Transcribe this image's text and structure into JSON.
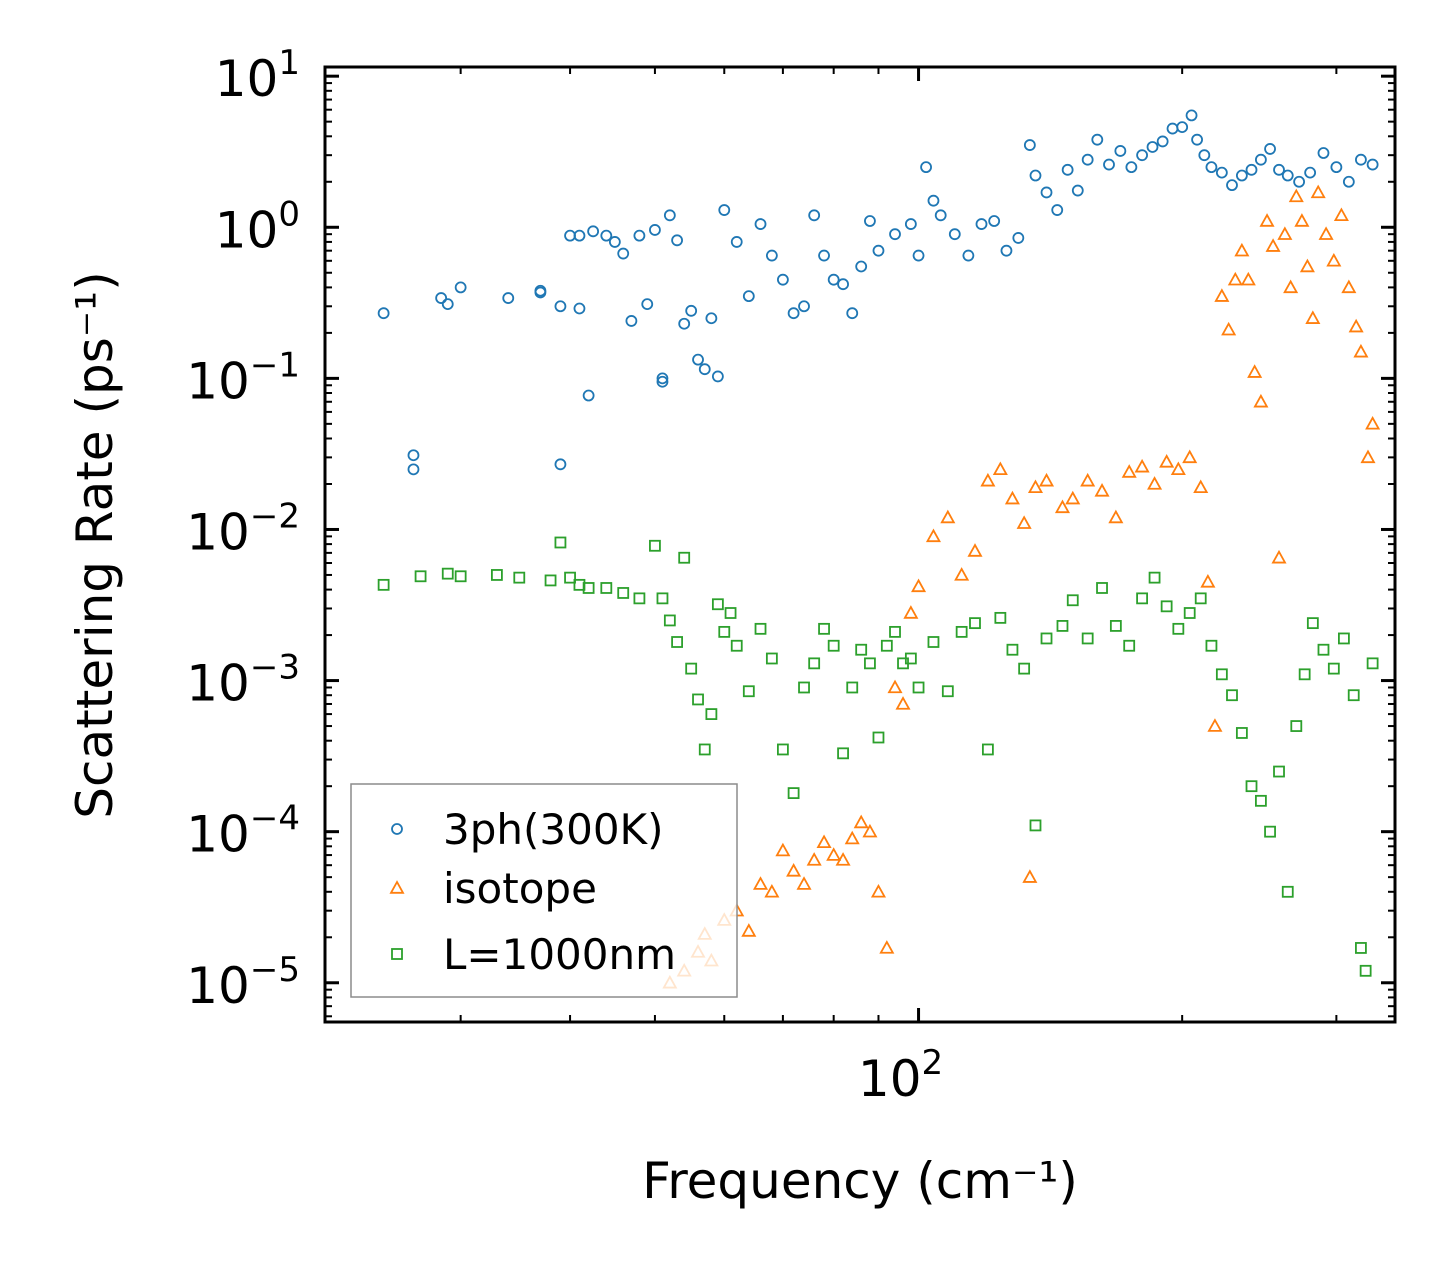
{
  "chart_data": {
    "type": "scatter",
    "title": "",
    "xlabel": "Frequency (cm⁻¹)",
    "ylabel": "Scattering Rate (ps⁻¹)",
    "xscale": "log",
    "yscale": "log",
    "xlim": [
      21,
      350
    ],
    "ylim": [
      5.5e-06,
      11.5
    ],
    "x_ticks": [
      {
        "base": "10",
        "exp": "2",
        "value": 100
      }
    ],
    "y_ticks": [
      {
        "base": "10",
        "exp": "1",
        "value": 10
      },
      {
        "base": "10",
        "exp": "0",
        "value": 1
      },
      {
        "base": "10",
        "exp": "−1",
        "value": 0.1
      },
      {
        "base": "10",
        "exp": "−2",
        "value": 0.01
      },
      {
        "base": "10",
        "exp": "−3",
        "value": 0.001
      },
      {
        "base": "10",
        "exp": "−4",
        "value": 0.0001
      },
      {
        "base": "10",
        "exp": "−5",
        "value": 1e-05
      }
    ],
    "legend_position": "lower-left",
    "series": [
      {
        "name": "3ph(300K)",
        "marker": "circle",
        "color": "#1f77b4",
        "points": [
          [
            24.5,
            0.27
          ],
          [
            26.5,
            0.031
          ],
          [
            26.5,
            0.025
          ],
          [
            28.5,
            0.34
          ],
          [
            29,
            0.31
          ],
          [
            30,
            0.4
          ],
          [
            34,
            0.34
          ],
          [
            37,
            0.38
          ],
          [
            37,
            0.37
          ],
          [
            39,
            0.027
          ],
          [
            39,
            0.3
          ],
          [
            40,
            0.88
          ],
          [
            41,
            0.88
          ],
          [
            41,
            0.29
          ],
          [
            42,
            0.077
          ],
          [
            42.5,
            0.94
          ],
          [
            44,
            0.88
          ],
          [
            45,
            0.8
          ],
          [
            46,
            0.67
          ],
          [
            47,
            0.24
          ],
          [
            48,
            0.88
          ],
          [
            49,
            0.31
          ],
          [
            50,
            0.96
          ],
          [
            51,
            0.1
          ],
          [
            51,
            0.095
          ],
          [
            52,
            1.2
          ],
          [
            53,
            0.82
          ],
          [
            54,
            0.23
          ],
          [
            55,
            0.28
          ],
          [
            56,
            0.133
          ],
          [
            57,
            0.115
          ],
          [
            58,
            0.25
          ],
          [
            59,
            0.103
          ],
          [
            60,
            1.3
          ],
          [
            62,
            0.8
          ],
          [
            64,
            0.35
          ],
          [
            66,
            1.05
          ],
          [
            68,
            0.65
          ],
          [
            70,
            0.45
          ],
          [
            72,
            0.27
          ],
          [
            74,
            0.3
          ],
          [
            76,
            1.2
          ],
          [
            78,
            0.65
          ],
          [
            80,
            0.45
          ],
          [
            82,
            0.42
          ],
          [
            84,
            0.27
          ],
          [
            86,
            0.55
          ],
          [
            88,
            1.1
          ],
          [
            90,
            0.7
          ],
          [
            94,
            0.9
          ],
          [
            98,
            1.05
          ],
          [
            100,
            0.65
          ],
          [
            102,
            2.5
          ],
          [
            104,
            1.5
          ],
          [
            106,
            1.2
          ],
          [
            110,
            0.9
          ],
          [
            114,
            0.65
          ],
          [
            118,
            1.05
          ],
          [
            122,
            1.1
          ],
          [
            126,
            0.7
          ],
          [
            130,
            0.85
          ],
          [
            134,
            3.5
          ],
          [
            136,
            2.2
          ],
          [
            140,
            1.7
          ],
          [
            144,
            1.3
          ],
          [
            148,
            2.4
          ],
          [
            152,
            1.75
          ],
          [
            156,
            2.8
          ],
          [
            160,
            3.8
          ],
          [
            165,
            2.6
          ],
          [
            170,
            3.2
          ],
          [
            175,
            2.5
          ],
          [
            180,
            3.0
          ],
          [
            185,
            3.4
          ],
          [
            190,
            3.7
          ],
          [
            195,
            4.5
          ],
          [
            200,
            4.6
          ],
          [
            205,
            5.5
          ],
          [
            208,
            3.8
          ],
          [
            212,
            3.0
          ],
          [
            216,
            2.5
          ],
          [
            222,
            2.3
          ],
          [
            228,
            1.9
          ],
          [
            234,
            2.2
          ],
          [
            240,
            2.4
          ],
          [
            246,
            2.8
          ],
          [
            252,
            3.3
          ],
          [
            258,
            2.4
          ],
          [
            264,
            2.2
          ],
          [
            272,
            2.0
          ],
          [
            280,
            2.3
          ],
          [
            290,
            3.1
          ],
          [
            300,
            2.5
          ],
          [
            310,
            2.0
          ],
          [
            320,
            2.8
          ],
          [
            330,
            2.6
          ]
        ]
      },
      {
        "name": "isotope",
        "marker": "triangle",
        "color": "#ff7f0e",
        "points": [
          [
            52,
            1e-05
          ],
          [
            54,
            1.2e-05
          ],
          [
            56,
            1.6e-05
          ],
          [
            57,
            2.1e-05
          ],
          [
            58,
            1.4e-05
          ],
          [
            60,
            2.6e-05
          ],
          [
            62,
            3e-05
          ],
          [
            64,
            2.2e-05
          ],
          [
            66,
            4.5e-05
          ],
          [
            68,
            4e-05
          ],
          [
            70,
            7.5e-05
          ],
          [
            72,
            5.5e-05
          ],
          [
            74,
            4.5e-05
          ],
          [
            76,
            6.5e-05
          ],
          [
            78,
            8.5e-05
          ],
          [
            80,
            7e-05
          ],
          [
            82,
            6.5e-05
          ],
          [
            84,
            9e-05
          ],
          [
            86,
            0.000115
          ],
          [
            88,
            0.0001
          ],
          [
            90,
            4e-05
          ],
          [
            92,
            1.7e-05
          ],
          [
            94,
            0.0009
          ],
          [
            96,
            0.0007
          ],
          [
            98,
            0.0028
          ],
          [
            100,
            0.0042
          ],
          [
            104,
            0.009
          ],
          [
            108,
            0.012
          ],
          [
            112,
            0.005
          ],
          [
            116,
            0.0072
          ],
          [
            120,
            0.021
          ],
          [
            124,
            0.025
          ],
          [
            128,
            0.016
          ],
          [
            132,
            0.011
          ],
          [
            134,
            5e-05
          ],
          [
            136,
            0.019
          ],
          [
            140,
            0.021
          ],
          [
            146,
            0.014
          ],
          [
            150,
            0.016
          ],
          [
            156,
            0.021
          ],
          [
            162,
            0.018
          ],
          [
            168,
            0.012
          ],
          [
            174,
            0.024
          ],
          [
            180,
            0.026
          ],
          [
            186,
            0.02
          ],
          [
            192,
            0.028
          ],
          [
            198,
            0.025
          ],
          [
            204,
            0.03
          ],
          [
            210,
            0.019
          ],
          [
            214,
            0.0045
          ],
          [
            218,
            0.0005
          ],
          [
            222,
            0.35
          ],
          [
            226,
            0.21
          ],
          [
            230,
            0.45
          ],
          [
            234,
            0.7
          ],
          [
            238,
            0.45
          ],
          [
            242,
            0.11
          ],
          [
            246,
            0.07
          ],
          [
            250,
            1.1
          ],
          [
            254,
            0.75
          ],
          [
            258,
            0.0065
          ],
          [
            262,
            0.9
          ],
          [
            266,
            0.4
          ],
          [
            270,
            1.6
          ],
          [
            274,
            1.1
          ],
          [
            278,
            0.55
          ],
          [
            282,
            0.25
          ],
          [
            286,
            1.7
          ],
          [
            292,
            0.9
          ],
          [
            298,
            0.6
          ],
          [
            304,
            1.2
          ],
          [
            310,
            0.4
          ],
          [
            316,
            0.22
          ],
          [
            320,
            0.15
          ],
          [
            326,
            0.03
          ],
          [
            330,
            0.05
          ]
        ]
      },
      {
        "name": "L=1000nm",
        "marker": "square",
        "color": "#2ca02c",
        "points": [
          [
            24.5,
            0.0043
          ],
          [
            27,
            0.0049
          ],
          [
            29,
            0.0051
          ],
          [
            30,
            0.0049
          ],
          [
            33,
            0.005
          ],
          [
            35,
            0.0048
          ],
          [
            38,
            0.0046
          ],
          [
            39,
            0.0082
          ],
          [
            40,
            0.0048
          ],
          [
            41,
            0.0043
          ],
          [
            42,
            0.0041
          ],
          [
            44,
            0.0041
          ],
          [
            46,
            0.0038
          ],
          [
            48,
            0.0035
          ],
          [
            50,
            0.0078
          ],
          [
            51,
            0.0035
          ],
          [
            52,
            0.0025
          ],
          [
            53,
            0.0018
          ],
          [
            54,
            0.0065
          ],
          [
            55,
            0.0012
          ],
          [
            56,
            0.00075
          ],
          [
            57,
            0.00035
          ],
          [
            58,
            0.0006
          ],
          [
            59,
            0.0032
          ],
          [
            60,
            0.0021
          ],
          [
            61,
            0.0028
          ],
          [
            62,
            0.0017
          ],
          [
            64,
            0.00085
          ],
          [
            66,
            0.0022
          ],
          [
            68,
            0.0014
          ],
          [
            70,
            0.00035
          ],
          [
            72,
            0.00018
          ],
          [
            74,
            0.0009
          ],
          [
            76,
            0.0013
          ],
          [
            78,
            0.0022
          ],
          [
            80,
            0.0017
          ],
          [
            82,
            0.00033
          ],
          [
            84,
            0.0009
          ],
          [
            86,
            0.0016
          ],
          [
            88,
            0.0013
          ],
          [
            90,
            0.00042
          ],
          [
            92,
            0.0017
          ],
          [
            94,
            0.0021
          ],
          [
            96,
            0.0013
          ],
          [
            98,
            0.0014
          ],
          [
            100,
            0.0009
          ],
          [
            104,
            0.0018
          ],
          [
            108,
            0.00085
          ],
          [
            112,
            0.0021
          ],
          [
            116,
            0.0024
          ],
          [
            120,
            0.00035
          ],
          [
            124,
            0.0026
          ],
          [
            128,
            0.0016
          ],
          [
            132,
            0.0012
          ],
          [
            136,
            0.00011
          ],
          [
            140,
            0.0019
          ],
          [
            146,
            0.0023
          ],
          [
            150,
            0.0034
          ],
          [
            156,
            0.0019
          ],
          [
            162,
            0.0041
          ],
          [
            168,
            0.0023
          ],
          [
            174,
            0.0017
          ],
          [
            180,
            0.0035
          ],
          [
            186,
            0.0048
          ],
          [
            192,
            0.0031
          ],
          [
            198,
            0.0022
          ],
          [
            204,
            0.0028
          ],
          [
            210,
            0.0035
          ],
          [
            216,
            0.0017
          ],
          [
            222,
            0.0011
          ],
          [
            228,
            0.0008
          ],
          [
            234,
            0.00045
          ],
          [
            240,
            0.0002
          ],
          [
            246,
            0.00016
          ],
          [
            252,
            0.0001
          ],
          [
            258,
            0.00025
          ],
          [
            264,
            4e-05
          ],
          [
            270,
            0.0005
          ],
          [
            276,
            0.0011
          ],
          [
            282,
            0.0024
          ],
          [
            290,
            0.0016
          ],
          [
            298,
            0.0012
          ],
          [
            306,
            0.0019
          ],
          [
            314,
            0.0008
          ],
          [
            320,
            1.7e-05
          ],
          [
            324,
            1.2e-05
          ],
          [
            330,
            0.0013
          ]
        ]
      }
    ]
  }
}
